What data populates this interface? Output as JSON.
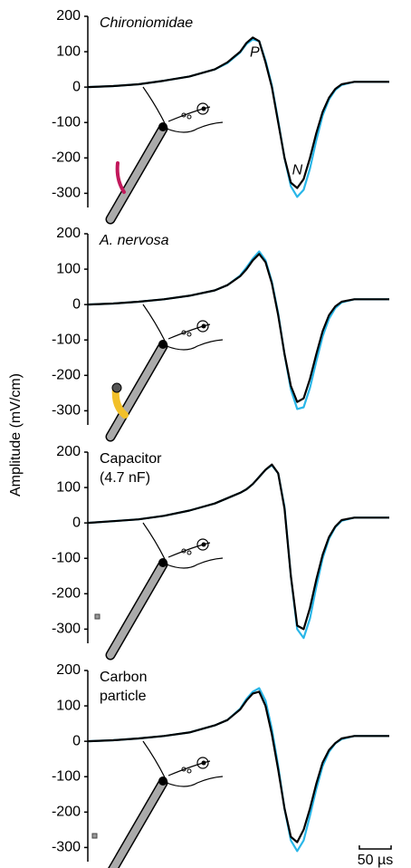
{
  "y_label": "Amplitude (mV/cm)",
  "scale_bar": {
    "value": 50,
    "label": "50 µs"
  },
  "chart_data": [
    {
      "type": "line",
      "title": [
        "Chironiomidae"
      ],
      "title_italic": true,
      "annotations": [
        "P",
        "N"
      ],
      "x": [
        0,
        40,
        80,
        120,
        160,
        200,
        220,
        240,
        250,
        260,
        270,
        280,
        290,
        300,
        310,
        320,
        330,
        340,
        350,
        360,
        370,
        380,
        390,
        400,
        420,
        440,
        475
      ],
      "xlim": [
        0,
        475
      ],
      "ylim": [
        -340,
        200
      ],
      "yticks": [
        200,
        100,
        0,
        -100,
        -200,
        -300
      ],
      "series": [
        {
          "color": "#29b6e8",
          "values": [
            0,
            3,
            8,
            18,
            30,
            50,
            68,
            98,
            122,
            135,
            130,
            75,
            5,
            -95,
            -200,
            -280,
            -310,
            -290,
            -230,
            -150,
            -80,
            -35,
            -8,
            6,
            15,
            15,
            15
          ]
        },
        {
          "color": "#000000",
          "values": [
            0,
            3,
            8,
            18,
            30,
            50,
            70,
            100,
            125,
            140,
            130,
            70,
            0,
            -100,
            -200,
            -270,
            -285,
            -260,
            -200,
            -130,
            -70,
            -30,
            -5,
            8,
            15,
            15,
            15
          ]
        }
      ]
    },
    {
      "type": "line",
      "title": [
        "A. nervosa"
      ],
      "title_italic": true,
      "x": [
        0,
        40,
        80,
        120,
        160,
        200,
        220,
        240,
        250,
        260,
        270,
        280,
        290,
        300,
        310,
        320,
        330,
        340,
        350,
        360,
        370,
        380,
        390,
        400,
        420,
        440,
        475
      ],
      "xlim": [
        0,
        475
      ],
      "ylim": [
        -340,
        200
      ],
      "yticks": [
        200,
        100,
        0,
        -100,
        -200,
        -300
      ],
      "series": [
        {
          "color": "#29b6e8",
          "values": [
            0,
            3,
            8,
            15,
            25,
            40,
            55,
            82,
            105,
            130,
            150,
            125,
            65,
            -25,
            -140,
            -240,
            -295,
            -290,
            -235,
            -160,
            -90,
            -40,
            -10,
            6,
            15,
            15,
            15
          ]
        },
        {
          "color": "#000000",
          "values": [
            0,
            3,
            8,
            15,
            25,
            40,
            55,
            80,
            100,
            125,
            143,
            120,
            60,
            -30,
            -140,
            -230,
            -275,
            -265,
            -210,
            -140,
            -75,
            -30,
            -5,
            8,
            15,
            15,
            15
          ]
        }
      ]
    },
    {
      "type": "line",
      "title": [
        "Capacitor",
        "(4.7 nF)"
      ],
      "title_italic": false,
      "x": [
        0,
        40,
        80,
        120,
        160,
        200,
        220,
        240,
        250,
        260,
        270,
        280,
        290,
        300,
        310,
        320,
        330,
        340,
        350,
        360,
        370,
        380,
        390,
        400,
        420,
        440,
        475
      ],
      "xlim": [
        0,
        475
      ],
      "ylim": [
        -340,
        200
      ],
      "yticks": [
        200,
        100,
        0,
        -100,
        -200,
        -300
      ],
      "series": [
        {
          "color": "#29b6e8",
          "values": [
            0,
            5,
            10,
            20,
            35,
            55,
            70,
            85,
            95,
            110,
            130,
            150,
            163,
            140,
            45,
            -150,
            -300,
            -325,
            -270,
            -180,
            -100,
            -45,
            -12,
            6,
            15,
            15,
            15
          ]
        },
        {
          "color": "#000000",
          "values": [
            0,
            5,
            10,
            20,
            35,
            55,
            70,
            85,
            95,
            110,
            130,
            150,
            165,
            140,
            40,
            -150,
            -290,
            -300,
            -240,
            -160,
            -90,
            -40,
            -10,
            8,
            15,
            15,
            15
          ]
        }
      ]
    },
    {
      "type": "line",
      "title": [
        "Carbon",
        "particle"
      ],
      "title_italic": false,
      "x": [
        0,
        40,
        80,
        120,
        160,
        200,
        220,
        240,
        250,
        260,
        270,
        280,
        290,
        300,
        310,
        320,
        330,
        340,
        350,
        360,
        370,
        380,
        390,
        400,
        420,
        440,
        475
      ],
      "xlim": [
        0,
        475
      ],
      "ylim": [
        -340,
        200
      ],
      "yticks": [
        200,
        100,
        0,
        -100,
        -200,
        -300
      ],
      "series": [
        {
          "color": "#29b6e8",
          "values": [
            0,
            3,
            8,
            15,
            25,
            45,
            60,
            92,
            120,
            140,
            150,
            115,
            35,
            -70,
            -190,
            -280,
            -310,
            -280,
            -210,
            -135,
            -70,
            -30,
            -6,
            6,
            15,
            15,
            15
          ]
        },
        {
          "color": "#000000",
          "values": [
            0,
            3,
            8,
            15,
            25,
            45,
            60,
            90,
            115,
            135,
            140,
            100,
            20,
            -80,
            -190,
            -270,
            -285,
            -250,
            -190,
            -120,
            -60,
            -25,
            -5,
            8,
            15,
            15,
            15
          ]
        }
      ]
    }
  ]
}
